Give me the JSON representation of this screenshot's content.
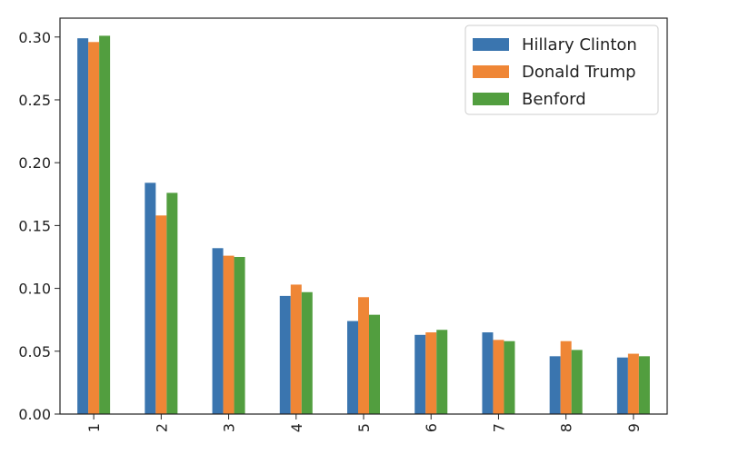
{
  "chart_data": {
    "type": "bar",
    "title": "",
    "xlabel": "",
    "ylabel": "",
    "categories": [
      "1",
      "2",
      "3",
      "4",
      "5",
      "6",
      "7",
      "8",
      "9"
    ],
    "series": [
      {
        "name": "Hillary Clinton",
        "color": "#3a75af",
        "values": [
          0.299,
          0.184,
          0.132,
          0.094,
          0.074,
          0.063,
          0.065,
          0.046,
          0.045
        ]
      },
      {
        "name": "Donald Trump",
        "color": "#ef8636",
        "values": [
          0.296,
          0.158,
          0.126,
          0.103,
          0.093,
          0.065,
          0.059,
          0.058,
          0.048
        ]
      },
      {
        "name": "Benford",
        "color": "#529e3f",
        "values": [
          0.301,
          0.176,
          0.125,
          0.097,
          0.079,
          0.067,
          0.058,
          0.051,
          0.046
        ]
      }
    ],
    "ylim": [
      0,
      0.315
    ],
    "yticks": [
      "0.00",
      "0.05",
      "0.10",
      "0.15",
      "0.20",
      "0.25",
      "0.30"
    ],
    "legend_position": "top-right",
    "grid": false
  }
}
